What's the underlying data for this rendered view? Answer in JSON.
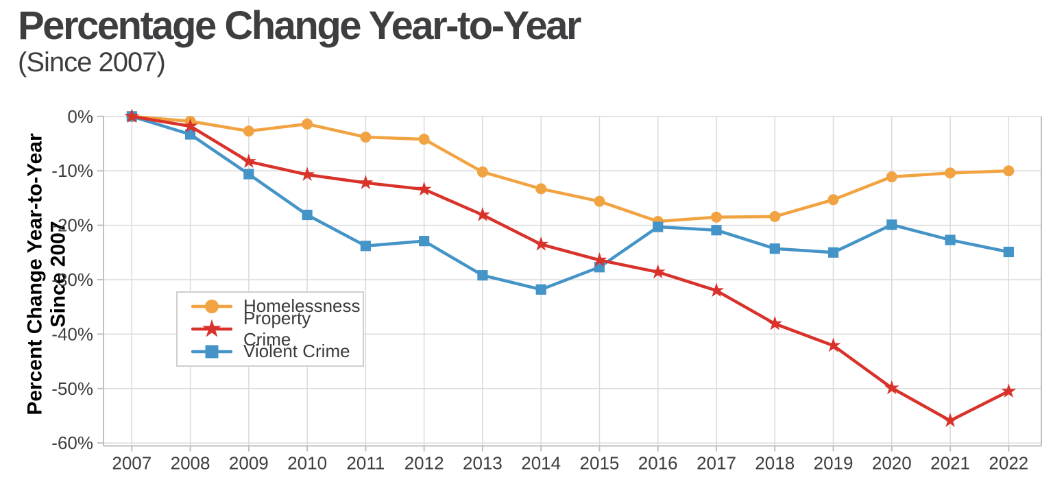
{
  "header": {
    "title": "Percentage Change Year-to-Year",
    "subtitle": "(Since 2007)"
  },
  "colors": {
    "title": "#3E3E41",
    "tick_label": "#3E3E3E",
    "axis_title": "#000000",
    "gridline": "#DADADA",
    "spine": "#BFBFBF",
    "background": "#FFFFFF",
    "legend_border": "#CFCFCF",
    "homelessness": "#F2A341",
    "property_crime": "#D8322B",
    "violent_crime": "#4594C7"
  },
  "chart_data": {
    "type": "line",
    "title": "Percentage Change Year-to-Year",
    "subtitle": "(Since 2007)",
    "ylabel": "Percent Change Year-to-Year Since 2007",
    "ylabel_lines": {
      "line1": "Percent Change Year-to-Year",
      "line2": "Since 2007"
    },
    "x": [
      2007,
      2008,
      2009,
      2010,
      2011,
      2012,
      2013,
      2014,
      2015,
      2016,
      2017,
      2018,
      2019,
      2020,
      2021,
      2022
    ],
    "xtick_labels": [
      "2007",
      "2008",
      "2009",
      "2010",
      "2011",
      "2012",
      "2013",
      "2014",
      "2015",
      "2016",
      "2017",
      "2018",
      "2019",
      "2020",
      "2021",
      "2022"
    ],
    "yticks": [
      0,
      -10,
      -20,
      -30,
      -40,
      -50,
      -60
    ],
    "ytick_labels": [
      "0%",
      "-10%",
      "-20%",
      "-30%",
      "-40%",
      "-50%",
      "-60%"
    ],
    "ylim": [
      -61,
      0
    ],
    "grid": true,
    "legend_position": "inside-upper-left",
    "series": [
      {
        "name": "Homelessness",
        "color": "#F2A341",
        "marker": "circle",
        "values": [
          0,
          -0.9,
          -2.7,
          -1.4,
          -3.8,
          -4.2,
          -10.2,
          -13.3,
          -15.6,
          -19.3,
          -18.5,
          -18.4,
          -15.3,
          -11.1,
          -10.4,
          -10.0
        ]
      },
      {
        "name": "Property Crime",
        "color": "#D8322B",
        "marker": "star",
        "values": [
          0,
          -1.8,
          -8.3,
          -10.7,
          -12.2,
          -13.4,
          -18.1,
          -23.5,
          -26.4,
          -28.6,
          -32.0,
          -38.1,
          -42.1,
          -49.9,
          -55.9,
          -50.5
        ]
      },
      {
        "name": "Violent Crime",
        "color": "#4594C7",
        "marker": "square",
        "values": [
          0,
          -3.3,
          -10.6,
          -18.1,
          -23.8,
          -22.9,
          -29.2,
          -31.8,
          -27.7,
          -20.3,
          -20.9,
          -24.3,
          -25.0,
          -19.9,
          -22.7,
          -24.9
        ]
      }
    ],
    "draw_order": [
      0,
      2,
      1
    ]
  }
}
